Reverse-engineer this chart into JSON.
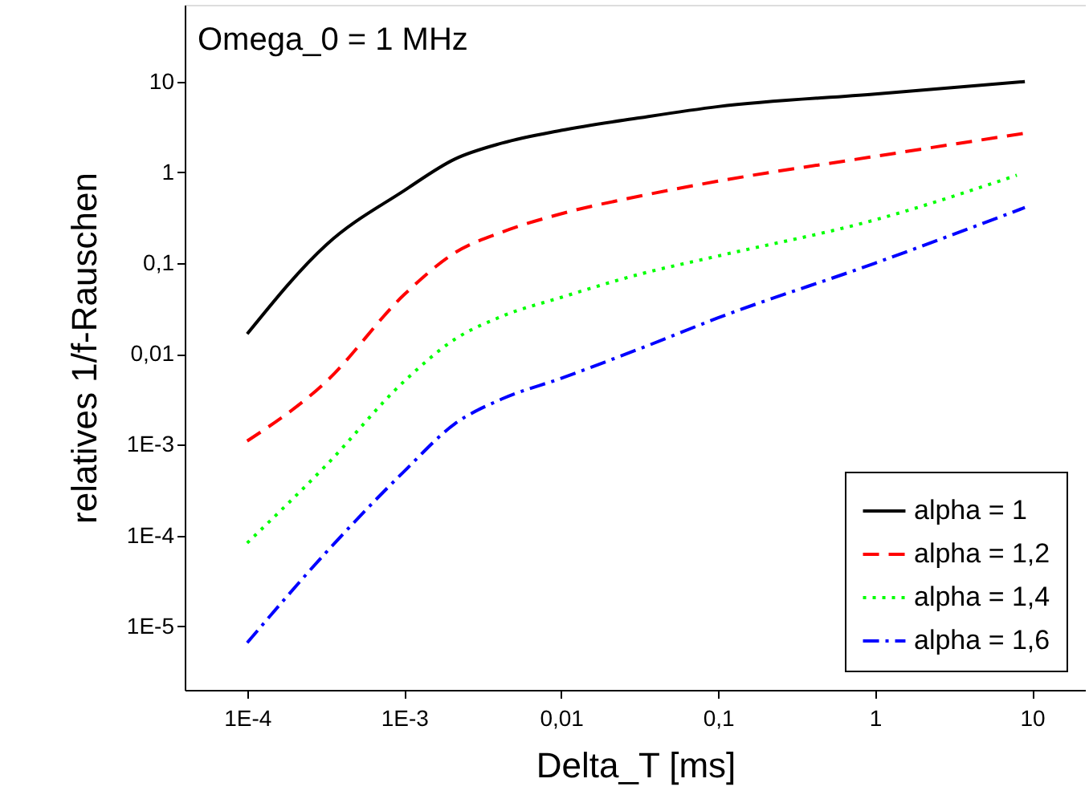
{
  "chart_data": {
    "type": "line",
    "xlabel": "Delta_T [ms]",
    "ylabel": "relatives 1/f-Rauschen",
    "annotations": [
      "Omega_0 = 1 MHz"
    ],
    "log": "xy",
    "grid": false,
    "legend": "bottom right",
    "marker": "none",
    "xlim": [
      4e-05,
      22
    ],
    "ylim": [
      2e-06,
      70
    ],
    "xticks": [
      {
        "value": 0.0001,
        "label": "1E-4"
      },
      {
        "value": 0.001,
        "label": "1E-3"
      },
      {
        "value": 0.01,
        "label": "0,01"
      },
      {
        "value": 0.1,
        "label": "0,1"
      },
      1,
      10
    ],
    "yticks": [
      {
        "value": 1e-05,
        "label": "1E-5"
      },
      {
        "value": 0.0001,
        "label": "1E-4"
      },
      {
        "value": 0.001,
        "label": "1E-3"
      },
      {
        "value": 0.01,
        "label": "0,01"
      },
      {
        "value": 0.1,
        "label": "0,1"
      },
      1,
      10
    ],
    "x": [
      0.0001,
      0.00032,
      0.001,
      0.0021,
      0.0042,
      0.01,
      0.032,
      0.1,
      1,
      9
    ],
    "series": [
      {
        "name": "alpha = 1",
        "color": "#000000",
        "line_style": "solid",
        "values": [
          0.0166,
          0.16,
          0.63,
          1.4,
          2.1,
          2.9,
          4.0,
          5.3,
          7.3,
          10
        ]
      },
      {
        "name": "alpha = 1,2",
        "color": "#ff0000",
        "line_style": "dashed",
        "values": [
          0.0011,
          0.005,
          0.045,
          0.13,
          0.22,
          0.35,
          0.55,
          0.8,
          1.5,
          2.7
        ]
      },
      {
        "name": "alpha = 1,4",
        "color": "#00ff00",
        "line_style": "dotted",
        "x": [
          0.0001,
          0.00032,
          0.001,
          0.0021,
          0.0042,
          0.01,
          0.032,
          0.1,
          1,
          8
        ],
        "values": [
          8.3e-05,
          0.0006,
          0.005,
          0.0145,
          0.026,
          0.042,
          0.076,
          0.12,
          0.3,
          0.93
        ]
      },
      {
        "name": "alpha = 1,6",
        "color": "#0000ff",
        "line_style": "dashdot",
        "values": [
          6.6e-06,
          6.6e-05,
          0.00051,
          0.0017,
          0.0032,
          0.0054,
          0.0115,
          0.025,
          0.1,
          0.41
        ]
      }
    ]
  }
}
